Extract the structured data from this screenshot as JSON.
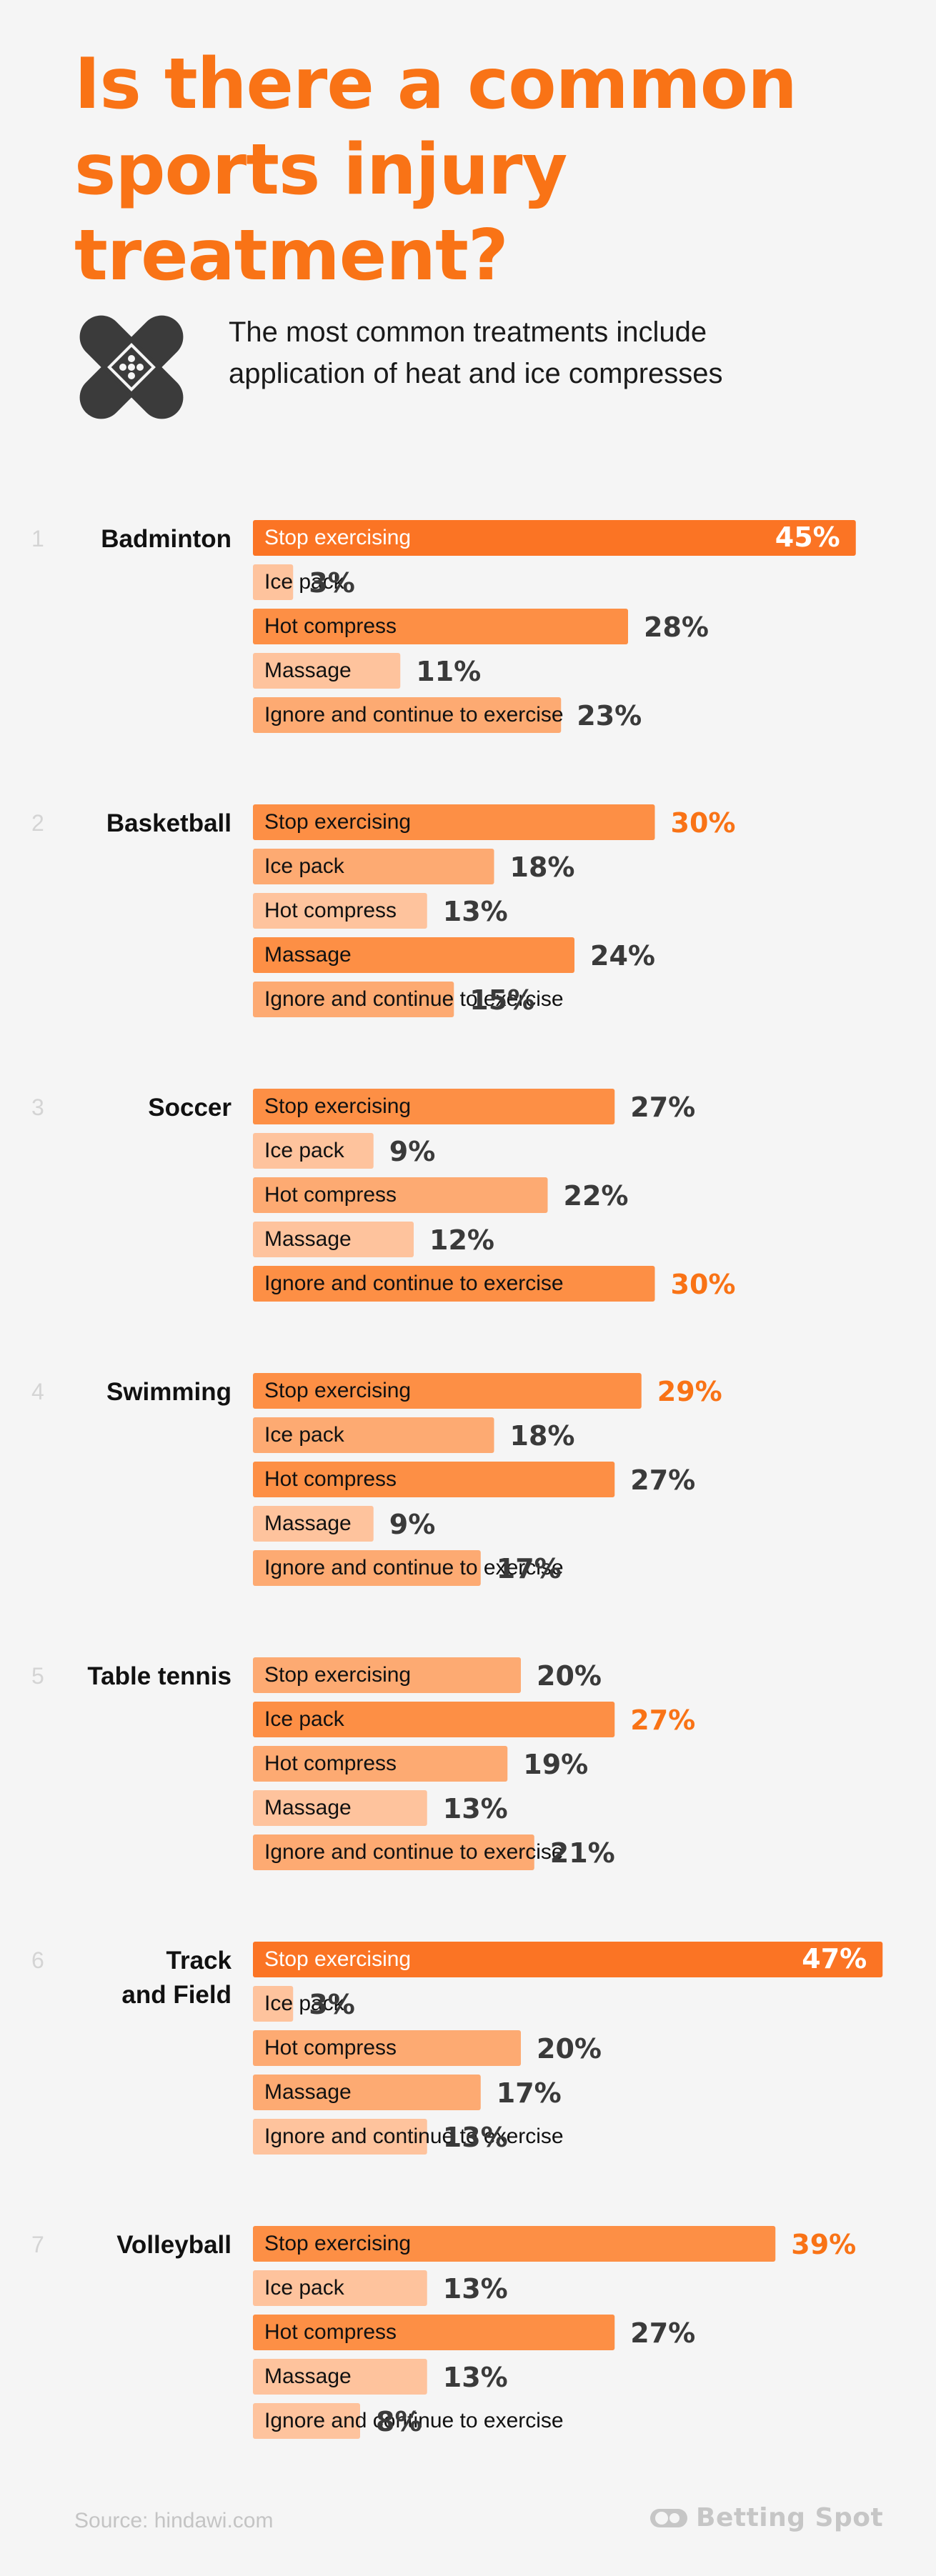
{
  "header": {
    "title_lines": [
      "Is there a common",
      "sports injury",
      "treatment?"
    ],
    "subtitle_lines": [
      "The most common treatments include",
      "application of heat and ice compresses"
    ],
    "icon": "bandage-icon"
  },
  "colors": {
    "title": "#f97316",
    "top_bar": "#fb7424",
    "strong_bar": "#fd8f45",
    "medium_bar": "#fdaa72",
    "light_bar": "#fec39d",
    "highlight_value": "#f97316",
    "value": "#3a3a3a",
    "rank": "#d4d4d4"
  },
  "chart_data": {
    "type": "bar",
    "orientation": "horizontal",
    "categories": [
      "Stop exercising",
      "Ice pack",
      "Hot compress",
      "Massage",
      "Ignore and continue to exercise"
    ],
    "unit": "%",
    "groups": [
      {
        "rank": "1",
        "sport_lines": [
          "Badminton"
        ],
        "values": [
          45,
          3,
          28,
          11,
          23
        ]
      },
      {
        "rank": "2",
        "sport_lines": [
          "Basketball"
        ],
        "values": [
          30,
          18,
          13,
          24,
          15
        ]
      },
      {
        "rank": "3",
        "sport_lines": [
          "Soccer"
        ],
        "values": [
          27,
          9,
          22,
          12,
          30
        ]
      },
      {
        "rank": "4",
        "sport_lines": [
          "Swimming"
        ],
        "values": [
          29,
          18,
          27,
          9,
          17
        ]
      },
      {
        "rank": "5",
        "sport_lines": [
          "Table tennis"
        ],
        "values": [
          20,
          27,
          19,
          13,
          21
        ]
      },
      {
        "rank": "6",
        "sport_lines": [
          "Track",
          "and Field"
        ],
        "values": [
          47,
          3,
          20,
          17,
          13
        ]
      },
      {
        "rank": "7",
        "sport_lines": [
          "Volleyball"
        ],
        "values": [
          39,
          13,
          27,
          13,
          8
        ]
      }
    ]
  },
  "footer": {
    "source": "Source: hindawi.com",
    "brand": "Betting Spot",
    "brand_icon": "toggle-logo-icon"
  }
}
